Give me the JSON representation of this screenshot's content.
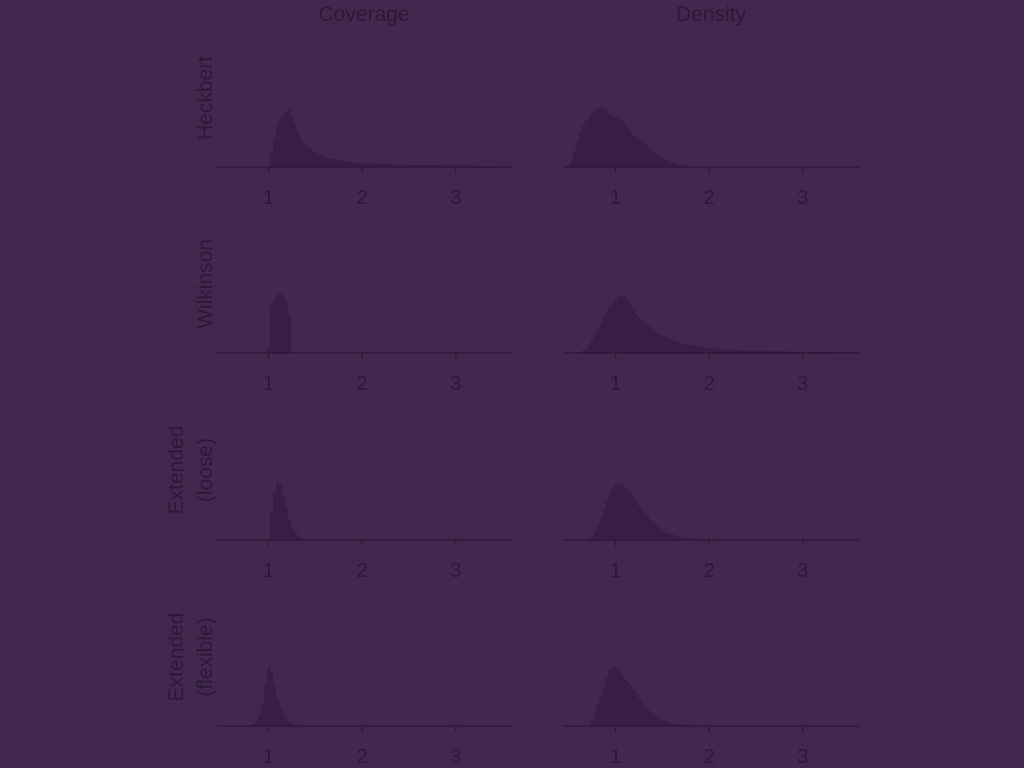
{
  "colors": {
    "background": "#42284f",
    "bars": "#381e45",
    "axis": "#2e1838",
    "text": "#2e1838"
  },
  "chart_data": {
    "type": "histogram-grid",
    "columns": [
      "Coverage",
      "Density"
    ],
    "rows": [
      {
        "label_lines": [
          "Heckbert"
        ]
      },
      {
        "label_lines": [
          "Wilkinson"
        ]
      },
      {
        "label_lines": [
          "Extended",
          "(loose)"
        ]
      },
      {
        "label_lines": [
          "Extended",
          "(flexible)"
        ]
      }
    ],
    "x_range": [
      0.45,
      3.6
    ],
    "x_ticks": [
      1,
      2,
      3
    ],
    "x_tick_labels": [
      "1",
      "2",
      "3"
    ],
    "grid": false,
    "legend": "none",
    "panels": [
      {
        "row": 0,
        "col": 0,
        "curve": [
          [
            1.0,
            0
          ],
          [
            1.03,
            0.2
          ],
          [
            1.08,
            0.62
          ],
          [
            1.13,
            0.85
          ],
          [
            1.18,
            0.94
          ],
          [
            1.22,
            1
          ],
          [
            1.28,
            0.72
          ],
          [
            1.35,
            0.46
          ],
          [
            1.45,
            0.3
          ],
          [
            1.55,
            0.2
          ],
          [
            1.7,
            0.13
          ],
          [
            1.9,
            0.08
          ],
          [
            2.1,
            0.06
          ],
          [
            2.4,
            0.04
          ],
          [
            2.8,
            0.03
          ],
          [
            3.2,
            0.02
          ],
          [
            3.6,
            0.01
          ]
        ]
      },
      {
        "row": 0,
        "col": 1,
        "curve": [
          [
            0.5,
            0
          ],
          [
            0.53,
            0.1
          ],
          [
            0.58,
            0.38
          ],
          [
            0.64,
            0.65
          ],
          [
            0.7,
            0.85
          ],
          [
            0.76,
            0.95
          ],
          [
            0.82,
            1
          ],
          [
            0.88,
            0.98
          ],
          [
            0.94,
            0.93
          ],
          [
            1.0,
            0.86
          ],
          [
            1.06,
            0.78
          ],
          [
            1.12,
            0.68
          ],
          [
            1.2,
            0.55
          ],
          [
            1.3,
            0.4
          ],
          [
            1.4,
            0.27
          ],
          [
            1.5,
            0.16
          ],
          [
            1.6,
            0.08
          ],
          [
            1.7,
            0.03
          ],
          [
            1.8,
            0.01
          ],
          [
            1.9,
            0
          ]
        ]
      },
      {
        "row": 1,
        "col": 0,
        "curve": [
          [
            1.0,
            0
          ],
          [
            1.01,
            0.7
          ],
          [
            1.04,
            0.85
          ],
          [
            1.08,
            0.95
          ],
          [
            1.12,
            1
          ],
          [
            1.17,
            0.96
          ],
          [
            1.21,
            0.82
          ],
          [
            1.23,
            0.6
          ],
          [
            1.24,
            0
          ]
        ]
      },
      {
        "row": 1,
        "col": 1,
        "curve": [
          [
            0.6,
            0
          ],
          [
            0.7,
            0.08
          ],
          [
            0.78,
            0.3
          ],
          [
            0.86,
            0.55
          ],
          [
            0.94,
            0.78
          ],
          [
            1.0,
            0.95
          ],
          [
            1.05,
            1
          ],
          [
            1.1,
            0.93
          ],
          [
            1.2,
            0.72
          ],
          [
            1.3,
            0.52
          ],
          [
            1.45,
            0.34
          ],
          [
            1.6,
            0.22
          ],
          [
            1.8,
            0.13
          ],
          [
            2.0,
            0.08
          ],
          [
            2.3,
            0.05
          ],
          [
            2.7,
            0.03
          ],
          [
            3.1,
            0.02
          ],
          [
            3.6,
            0.01
          ]
        ]
      },
      {
        "row": 2,
        "col": 0,
        "curve": [
          [
            1.0,
            0
          ],
          [
            1.02,
            0.35
          ],
          [
            1.05,
            0.72
          ],
          [
            1.08,
            0.93
          ],
          [
            1.11,
            1
          ],
          [
            1.14,
            0.88
          ],
          [
            1.18,
            0.6
          ],
          [
            1.23,
            0.3
          ],
          [
            1.29,
            0.11
          ],
          [
            1.35,
            0.03
          ],
          [
            1.4,
            0
          ]
        ]
      },
      {
        "row": 2,
        "col": 1,
        "curve": [
          [
            0.7,
            0
          ],
          [
            0.75,
            0.06
          ],
          [
            0.8,
            0.2
          ],
          [
            0.86,
            0.45
          ],
          [
            0.92,
            0.7
          ],
          [
            0.98,
            0.9
          ],
          [
            1.03,
            1
          ],
          [
            1.08,
            0.95
          ],
          [
            1.15,
            0.8
          ],
          [
            1.25,
            0.6
          ],
          [
            1.35,
            0.38
          ],
          [
            1.45,
            0.22
          ],
          [
            1.55,
            0.12
          ],
          [
            1.7,
            0.05
          ],
          [
            1.85,
            0.02
          ],
          [
            2.1,
            0.01
          ],
          [
            2.5,
            0
          ]
        ]
      },
      {
        "row": 3,
        "col": 0,
        "curve": [
          [
            0.8,
            0
          ],
          [
            0.86,
            0.05
          ],
          [
            0.9,
            0.15
          ],
          [
            0.94,
            0.38
          ],
          [
            0.97,
            0.7
          ],
          [
            1.0,
            1
          ],
          [
            1.03,
            0.95
          ],
          [
            1.06,
            0.74
          ],
          [
            1.1,
            0.45
          ],
          [
            1.15,
            0.22
          ],
          [
            1.2,
            0.09
          ],
          [
            1.27,
            0.03
          ],
          [
            1.35,
            0
          ]
        ]
      },
      {
        "row": 3,
        "col": 1,
        "curve": [
          [
            0.7,
            0
          ],
          [
            0.74,
            0.06
          ],
          [
            0.8,
            0.3
          ],
          [
            0.86,
            0.62
          ],
          [
            0.92,
            0.88
          ],
          [
            0.96,
            0.98
          ],
          [
            1.0,
            1
          ],
          [
            1.05,
            0.94
          ],
          [
            1.12,
            0.78
          ],
          [
            1.2,
            0.58
          ],
          [
            1.3,
            0.36
          ],
          [
            1.4,
            0.2
          ],
          [
            1.5,
            0.1
          ],
          [
            1.6,
            0.05
          ],
          [
            1.75,
            0.02
          ],
          [
            1.9,
            0.01
          ],
          [
            2.1,
            0
          ]
        ]
      }
    ]
  }
}
